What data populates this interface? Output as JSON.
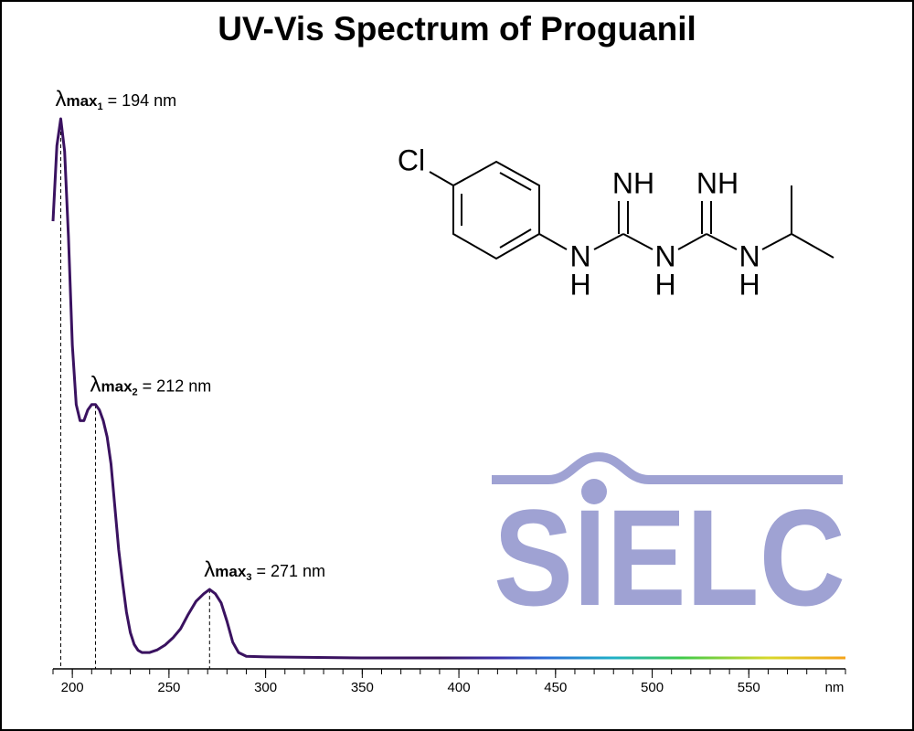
{
  "chart_data": {
    "type": "line",
    "title": "UV-Vis Spectrum of Proguanil",
    "x_unit": "nm",
    "x": [
      190,
      192,
      194,
      196,
      198,
      200,
      202,
      204,
      206,
      208,
      210,
      212,
      214,
      216,
      218,
      220,
      222,
      224,
      226,
      228,
      230,
      232,
      234,
      236,
      240,
      244,
      248,
      252,
      256,
      260,
      264,
      268,
      271,
      274,
      277,
      280,
      283,
      286,
      290,
      300,
      350,
      400,
      450,
      500,
      550,
      600
    ],
    "series": [
      {
        "values": [
          0.81,
          0.95,
          1.0,
          0.94,
          0.78,
          0.58,
          0.47,
          0.44,
          0.44,
          0.46,
          0.47,
          0.47,
          0.46,
          0.44,
          0.41,
          0.36,
          0.28,
          0.2,
          0.14,
          0.085,
          0.047,
          0.025,
          0.014,
          0.01,
          0.01,
          0.015,
          0.024,
          0.037,
          0.054,
          0.081,
          0.105,
          0.119,
          0.127,
          0.119,
          0.102,
          0.068,
          0.029,
          0.01,
          0.003,
          0.002,
          0,
          0,
          0,
          0,
          0,
          0
        ]
      }
    ],
    "gradient": [
      {
        "value": 390,
        "color": "#3a1260"
      },
      {
        "value": 420,
        "color": "#3b2ea8"
      },
      {
        "value": 445,
        "color": "#2c6bd6"
      },
      {
        "value": 480,
        "color": "#1fb0c8"
      },
      {
        "value": 515,
        "color": "#3fca4a"
      },
      {
        "value": 560,
        "color": "#d8d82a"
      },
      {
        "value": 600,
        "color": "#f5a31a"
      }
    ],
    "xlim": [
      190,
      600
    ],
    "ylim": [
      0,
      1
    ],
    "xticks": [
      200,
      250,
      300,
      350,
      400,
      450,
      500,
      550
    ],
    "xticks_minor": [
      190,
      200,
      210,
      220,
      230,
      240,
      250,
      260,
      270,
      280,
      290,
      300,
      310,
      320,
      330,
      340,
      350,
      360,
      370,
      380,
      390,
      400,
      410,
      420,
      430,
      440,
      450,
      460,
      470,
      480,
      490,
      500,
      510,
      520,
      530,
      540,
      550,
      560,
      570,
      580,
      590,
      600
    ],
    "annotations": [
      {
        "x": 194,
        "symbol": "λ",
        "sub": "max",
        "index": "1",
        "text": " = 194 nm"
      },
      {
        "x": 212,
        "symbol": "λ",
        "sub": "max",
        "index": "2",
        "text": " = 212 nm"
      },
      {
        "x": 271,
        "symbol": "λ",
        "sub": "max",
        "index": "3",
        "text": " = 271 nm"
      }
    ]
  },
  "structure": {
    "atoms": [
      "Cl",
      "NH",
      "NH",
      "N",
      "H",
      "N",
      "H",
      "N",
      "H"
    ]
  },
  "logo": "SIELC"
}
